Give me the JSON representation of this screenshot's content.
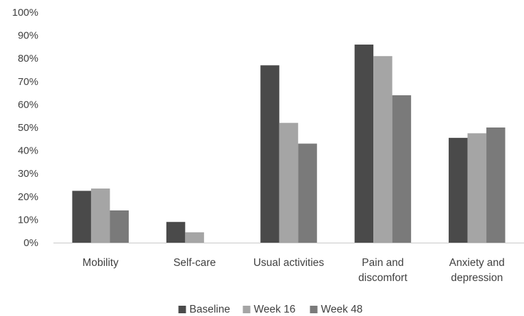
{
  "chart_data": {
    "type": "bar",
    "title": "",
    "xlabel": "",
    "ylabel": "",
    "ylim": [
      0,
      100
    ],
    "y_tick_step": 10,
    "y_tick_suffix": "%",
    "grid": false,
    "legend_position": "bottom",
    "categories": [
      [
        "Mobility"
      ],
      [
        "Self-care"
      ],
      [
        "Usual activities"
      ],
      [
        "Pain and",
        "discomfort"
      ],
      [
        "Anxiety and",
        "depression"
      ]
    ],
    "series": [
      {
        "name": "Baseline",
        "color": "#4a4a4a",
        "values": [
          22.5,
          9,
          77,
          86,
          45.5
        ]
      },
      {
        "name": "Week 16",
        "color": "#a5a5a5",
        "values": [
          23.5,
          4.5,
          52,
          81,
          47.5
        ]
      },
      {
        "name": "Week 48",
        "color": "#7a7a7a",
        "values": [
          14,
          0,
          43,
          64,
          50
        ]
      }
    ]
  }
}
